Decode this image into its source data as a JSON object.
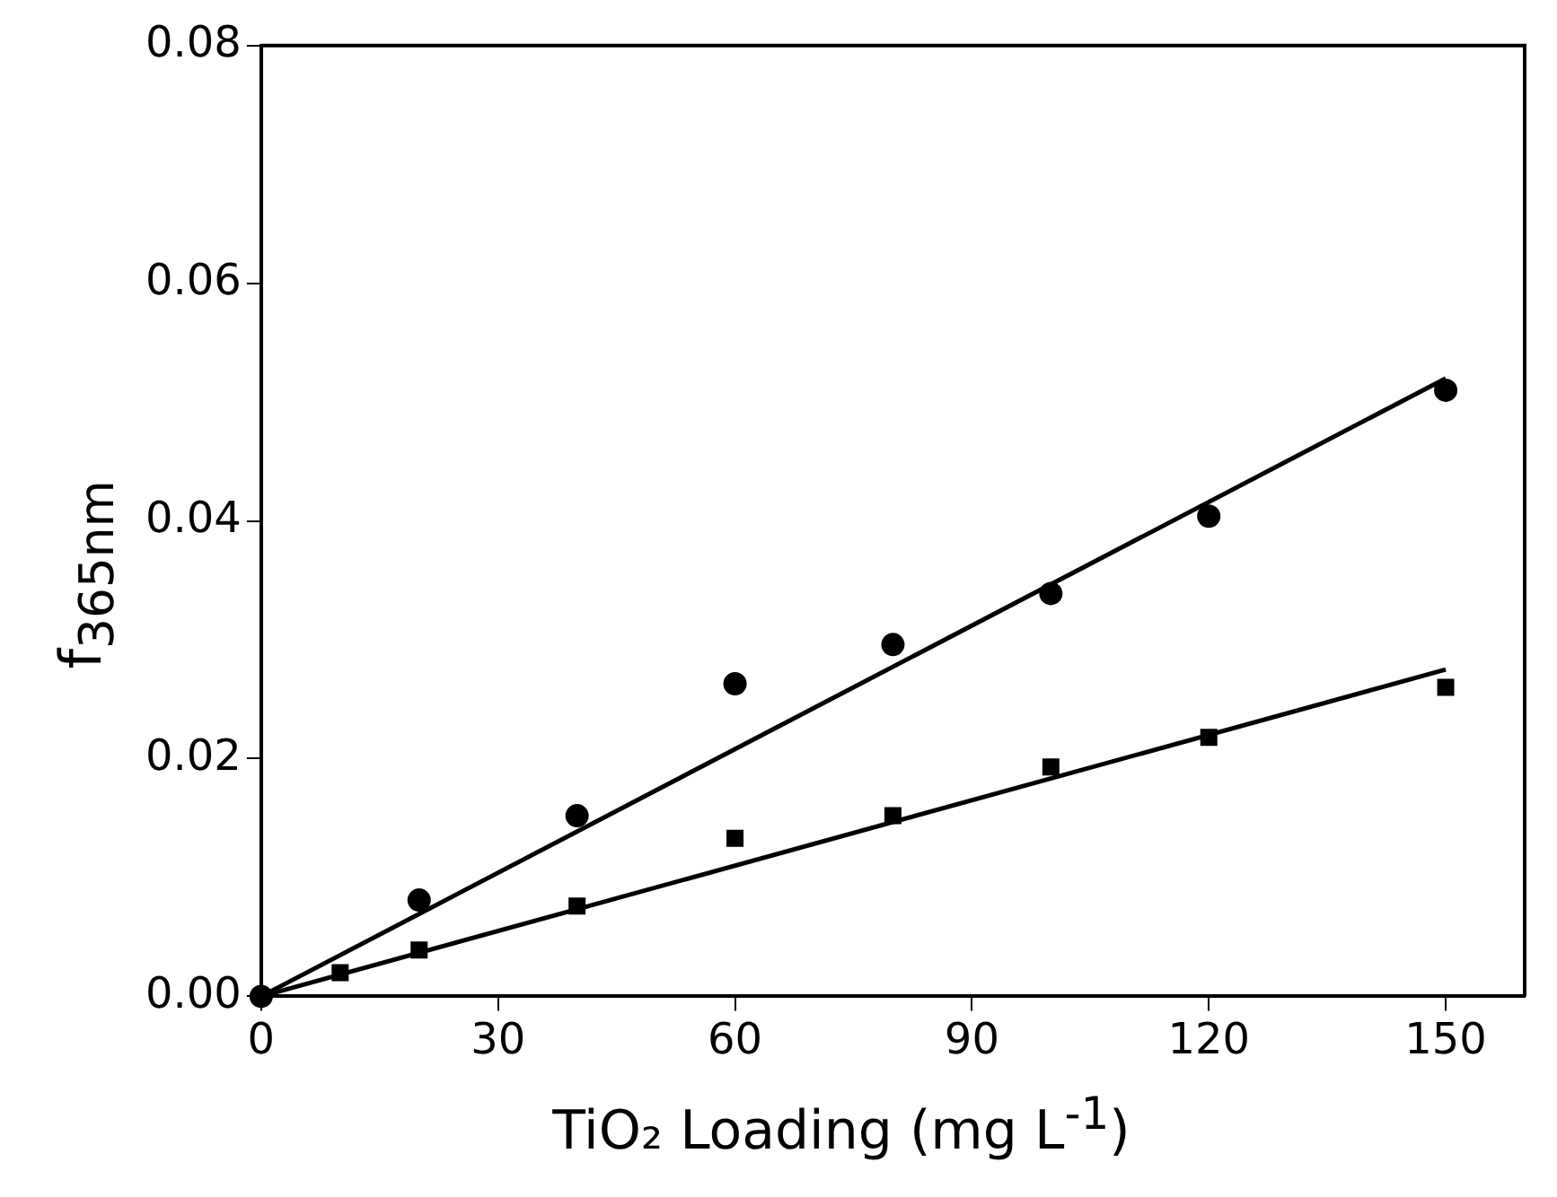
{
  "chart_data": {
    "type": "scatter",
    "xlabel": "TiO₂ Loading (mg L$^{-1}$)",
    "ylabel": "f$_{365nm}$",
    "xlim": [
      0,
      160
    ],
    "ylim": [
      0,
      0.08
    ],
    "xticks": [
      0,
      30,
      60,
      90,
      120,
      150
    ],
    "yticks": [
      {
        "value": 0,
        "label": "0.00"
      },
      {
        "value": 0.02,
        "label": "0.02"
      },
      {
        "value": 0.04,
        "label": "0.04"
      },
      {
        "value": 0.06,
        "label": "0.06"
      },
      {
        "value": 0.08,
        "label": "0.08"
      }
    ],
    "grid": false,
    "legend": false,
    "series": [
      {
        "marker": "circle",
        "color": "#000000",
        "x": [
          0,
          20,
          40,
          60,
          80,
          100,
          120,
          150
        ],
        "values": [
          0,
          0.0081,
          0.0152,
          0.0263,
          0.0296,
          0.0339,
          0.0404,
          0.051
        ]
      },
      {
        "marker": "square",
        "color": "#000000",
        "x": [
          10,
          20,
          40,
          60,
          80,
          100,
          120,
          150
        ],
        "values": [
          0.002,
          0.0039,
          0.0076,
          0.0133,
          0.0152,
          0.0193,
          0.0218,
          0.026
        ]
      },
      {
        "type": "line",
        "marker": "none",
        "line_style": "solid",
        "color": "#000000",
        "x": [
          0,
          150
        ],
        "values": [
          0,
          0.052
        ]
      },
      {
        "type": "line",
        "marker": "none",
        "line_style": "solid",
        "color": "#000000",
        "x": [
          0,
          150
        ],
        "values": [
          0,
          0.0275
        ]
      }
    ]
  }
}
